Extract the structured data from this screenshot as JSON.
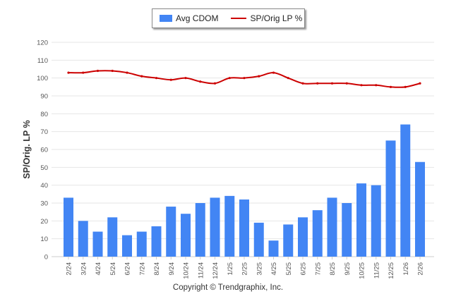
{
  "chart_data": {
    "type": "bar",
    "categories": [
      "2/24",
      "3/24",
      "4/24",
      "5/24",
      "6/24",
      "7/24",
      "8/24",
      "9/24",
      "10/24",
      "11/24",
      "12/24",
      "1/25",
      "2/25",
      "3/25",
      "4/25",
      "5/25",
      "6/25",
      "7/25",
      "8/25",
      "9/25",
      "10/25",
      "11/25",
      "12/25",
      "1/26",
      "2/26"
    ],
    "series": [
      {
        "name": "Avg CDOM",
        "type": "bar",
        "color": "#4285f4",
        "values": [
          33,
          20,
          14,
          22,
          12,
          14,
          17,
          28,
          24,
          30,
          33,
          34,
          32,
          19,
          9,
          18,
          22,
          26,
          33,
          30,
          41,
          40,
          65,
          74,
          53
        ]
      },
      {
        "name": "SP/Orig LP %",
        "type": "line",
        "color": "#cc0000",
        "values": [
          103,
          103,
          104,
          104,
          103,
          101,
          100,
          99,
          100,
          98,
          97,
          100,
          100,
          101,
          103,
          100,
          97,
          97,
          97,
          97,
          96,
          96,
          95,
          95,
          97
        ]
      }
    ],
    "ylabel": "SP/Orig. LP %",
    "ylim": [
      0,
      120
    ],
    "yticks": [
      0,
      10,
      20,
      30,
      40,
      50,
      60,
      70,
      80,
      90,
      100,
      110,
      120
    ],
    "grid": true,
    "legend": "top-center"
  },
  "copyright": "Copyright © Trendgraphix, Inc."
}
